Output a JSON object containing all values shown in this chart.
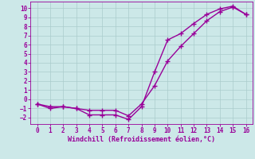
{
  "xlabel": "Windchill (Refroidissement éolien,°C)",
  "xlim": [
    -0.5,
    16.5
  ],
  "ylim": [
    -2.7,
    10.7
  ],
  "xticks": [
    0,
    1,
    2,
    3,
    4,
    5,
    6,
    7,
    8,
    9,
    10,
    11,
    12,
    13,
    14,
    15,
    16
  ],
  "yticks": [
    -2,
    -1,
    0,
    1,
    2,
    3,
    4,
    5,
    6,
    7,
    8,
    9,
    10
  ],
  "line1_x": [
    0,
    1,
    2,
    3,
    4,
    5,
    6,
    7,
    8,
    9,
    10,
    11,
    12,
    13,
    14,
    15,
    16
  ],
  "line1_y": [
    -0.5,
    -1.0,
    -0.8,
    -1.0,
    -1.7,
    -1.7,
    -1.7,
    -2.2,
    -0.8,
    3.0,
    6.5,
    7.2,
    8.3,
    9.3,
    9.9,
    10.2,
    9.3
  ],
  "line2_x": [
    0,
    1,
    2,
    3,
    4,
    5,
    6,
    7,
    8,
    9,
    10,
    11,
    12,
    13,
    14,
    15,
    16
  ],
  "line2_y": [
    -0.5,
    -0.8,
    -0.8,
    -1.0,
    -1.2,
    -1.2,
    -1.2,
    -1.8,
    -0.5,
    1.5,
    4.2,
    5.8,
    7.2,
    8.6,
    9.6,
    10.1,
    9.3
  ],
  "color": "#990099",
  "bg_color": "#cce8e8",
  "grid_color": "#aacccc",
  "marker": "+",
  "markersize": 4,
  "linewidth": 1.0,
  "tick_fontsize": 5.5,
  "label_fontsize": 6.0
}
